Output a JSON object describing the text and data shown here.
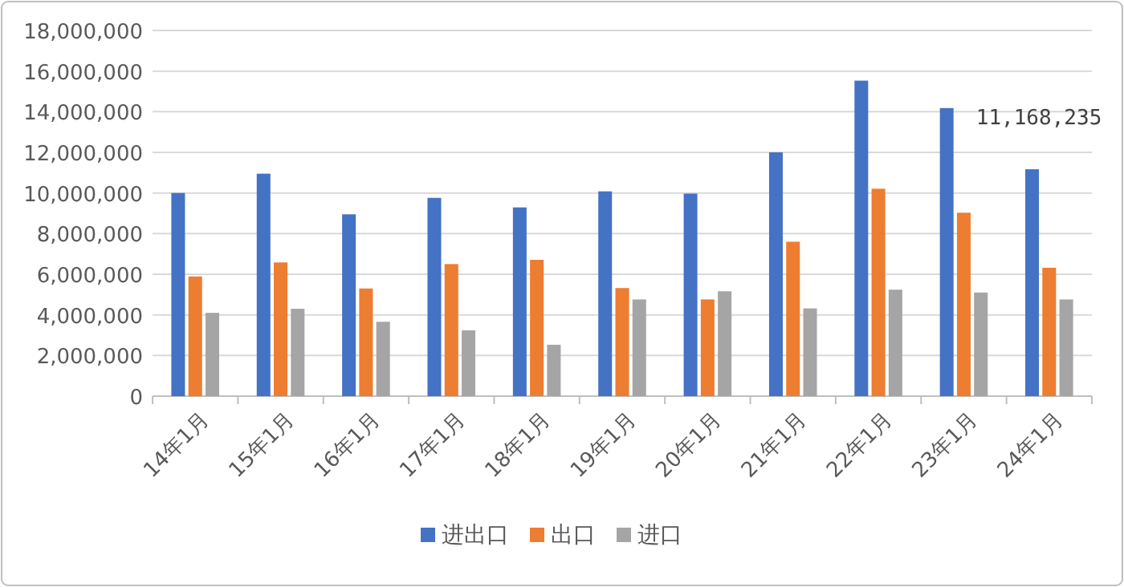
{
  "chart_data": {
    "type": "bar",
    "categories": [
      "14年1月",
      "15年1月",
      "16年1月",
      "17年1月",
      "18年1月",
      "19年1月",
      "20年1月",
      "21年1月",
      "22年1月",
      "23年1月",
      "24年1月"
    ],
    "series": [
      {
        "name": "进出口",
        "color": "#4472c4",
        "values": [
          10000000,
          10950000,
          8950000,
          9760000,
          9290000,
          10080000,
          9970000,
          12000000,
          15530000,
          14180000,
          11168235
        ],
        "value_labels": [
          null,
          null,
          null,
          null,
          null,
          null,
          null,
          null,
          null,
          null,
          "11,168,235"
        ]
      },
      {
        "name": "出口",
        "color": "#ed7d31",
        "values": [
          5890000,
          6580000,
          5300000,
          6500000,
          6710000,
          5320000,
          4760000,
          7600000,
          10210000,
          9030000,
          6320000
        ]
      },
      {
        "name": "进口",
        "color": "#a5a5a5",
        "values": [
          4100000,
          4300000,
          3660000,
          3240000,
          2530000,
          4760000,
          5160000,
          4320000,
          5240000,
          5100000,
          4760000
        ]
      }
    ],
    "ylim": [
      0,
      18000000
    ],
    "yticks": [
      {
        "value": 0,
        "label": "0"
      },
      {
        "value": 2000000,
        "label": "2,000,000"
      },
      {
        "value": 4000000,
        "label": "4,000,000"
      },
      {
        "value": 6000000,
        "label": "6,000,000"
      },
      {
        "value": 8000000,
        "label": "8,000,000"
      },
      {
        "value": 10000000,
        "label": "10,000,000"
      },
      {
        "value": 12000000,
        "label": "12,000,000"
      },
      {
        "value": 14000000,
        "label": "14,000,000"
      },
      {
        "value": 16000000,
        "label": "16,000,000"
      },
      {
        "value": 18000000,
        "label": "18,000,000"
      }
    ],
    "grid": "y",
    "legend": "bottom"
  }
}
